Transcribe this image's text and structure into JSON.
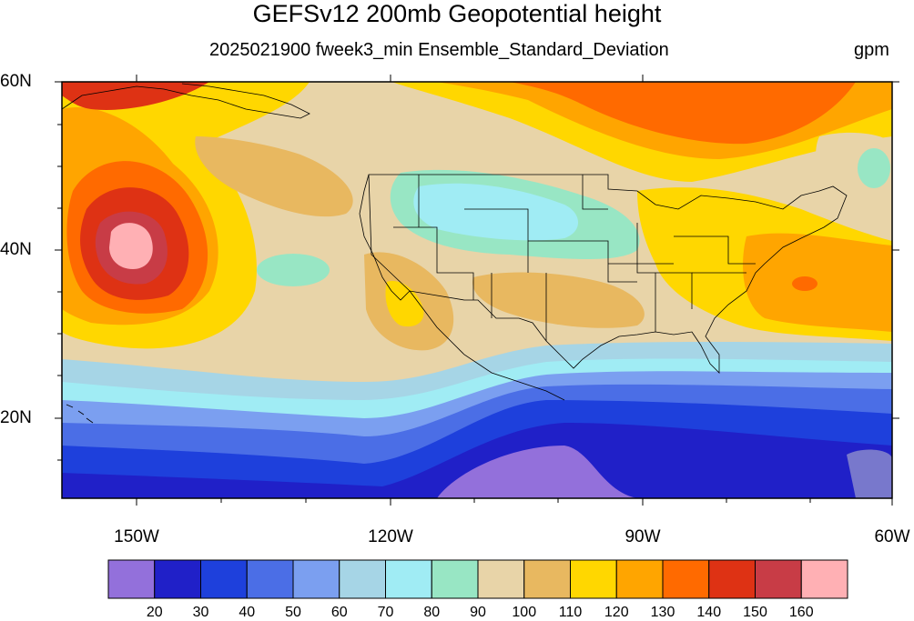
{
  "title": "GEFSv12 200mb Geopotential height",
  "subtitle": "2025021900 fweek3_min Ensemble_Standard_Deviation",
  "units": "gpm",
  "lat_labels": [
    "60N",
    "40N",
    "20N"
  ],
  "lon_labels": [
    "150W",
    "120W",
    "90W",
    "60W"
  ],
  "colorbar": {
    "colors": [
      "#9370db",
      "#2020c8",
      "#1e40dc",
      "#4b6ee6",
      "#7b9ff0",
      "#a6d5e6",
      "#a0ecf4",
      "#98e6c4",
      "#e8d4a8",
      "#e8b860",
      "#ffd700",
      "#ffa500",
      "#ff6a00",
      "#de3214",
      "#c83c46",
      "#ffb0b4"
    ],
    "labels": [
      "20",
      "30",
      "40",
      "50",
      "60",
      "70",
      "80",
      "90",
      "100",
      "110",
      "120",
      "130",
      "140",
      "150",
      "160"
    ]
  },
  "map_colors": {
    "ocean_low": "#2020c8",
    "land_lines": "#000000"
  }
}
